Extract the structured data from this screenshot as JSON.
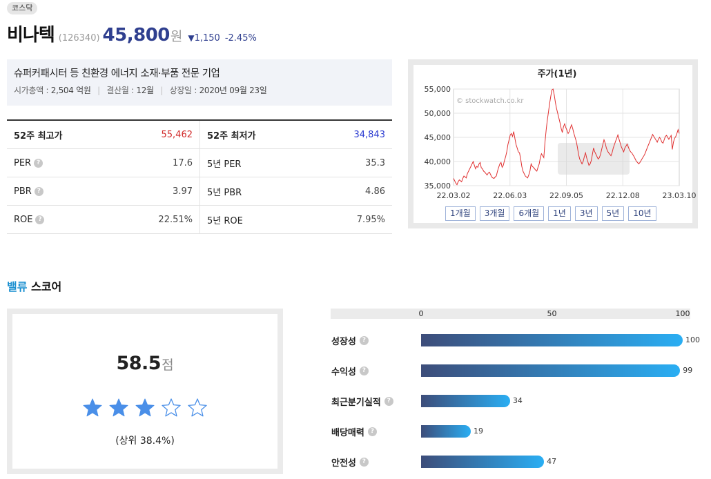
{
  "header": {
    "market": "코스닥",
    "name": "비나텍",
    "code": "(126340)",
    "price": "45,800",
    "price_unit": "원",
    "change_icon": "down-triangle-icon",
    "change_symbol": "▼",
    "change": "1,150",
    "change_pct": "-2.45%",
    "colors": {
      "down": "#2f3f8f",
      "up": "#d12a2a"
    }
  },
  "summary": {
    "description": "슈퍼커패시터 등 친환경 에너지 소재·부품 전문 기업",
    "market_cap_label": "시가총액 : ",
    "market_cap": "2,504 억원",
    "fiscal_label": "결산월 : ",
    "fiscal": "12월",
    "listing_label": "상장일 : ",
    "listing": "2020년 09월 23일"
  },
  "metrics": {
    "rows": [
      {
        "left_key": "52주 최고가",
        "left_val": "55,462",
        "right_key": "52주 최저가",
        "right_val": "34,843"
      },
      {
        "left_key": "PER",
        "left_val": "17.6",
        "right_key": "5년 PER",
        "right_val": "35.3"
      },
      {
        "left_key": "PBR",
        "left_val": "3.97",
        "right_key": "5년 PBR",
        "right_val": "4.86"
      },
      {
        "left_key": "ROE",
        "left_val": "22.51%",
        "right_key": "5년 ROE",
        "right_val": "7.95%"
      }
    ],
    "help_icon": "question-icon",
    "help_glyph": "?"
  },
  "chart_data": {
    "type": "line",
    "title": "주가(1년)",
    "watermark": "© stockwatch.co.kr",
    "x_ticks": [
      "22.03.02",
      "22.06.03",
      "22.09.05",
      "22.12.08",
      "23.03.10"
    ],
    "y_ticks": [
      "35,000",
      "40,000",
      "45,000",
      "50,000",
      "55,000"
    ],
    "ylim": [
      35000,
      55000
    ],
    "grid": true,
    "line_color": "#e03030",
    "series": [
      {
        "values": [
          36500,
          36000,
          35500,
          35200,
          35800,
          36200,
          36000,
          35800,
          36500,
          37000,
          36800,
          36600,
          37500,
          38000,
          38500,
          39000,
          39500,
          40000,
          39200,
          38500,
          39000,
          38800,
          39500,
          39800,
          38700,
          38500,
          38000,
          37800,
          37500,
          37200,
          37600,
          37800,
          37300,
          36800,
          36600,
          36500,
          36800,
          37000,
          38000,
          38800,
          39500,
          39800,
          38800,
          39200,
          40200,
          41000,
          42000,
          43500,
          44500,
          45500,
          45800,
          45200,
          46200,
          44800,
          43500,
          42800,
          42000,
          41800,
          40500,
          39000,
          38000,
          37500,
          37000,
          36800,
          36600,
          37200,
          38000,
          39500,
          39000,
          38800,
          38500,
          38200,
          38000,
          38800,
          39500,
          40800,
          41600,
          41200,
          40800,
          44000,
          46500,
          48500,
          50200,
          52000,
          53500,
          54800,
          55000,
          53800,
          52200,
          51000,
          50000,
          49000,
          48000,
          46800,
          46000,
          47200,
          47800,
          47000,
          46500,
          45800,
          46200,
          47000,
          47600,
          46800,
          45800,
          45000,
          44200,
          43000,
          41500,
          40500,
          40000,
          39500,
          40000,
          41000,
          41800,
          40800,
          40000,
          39200,
          39500,
          40200,
          41500,
          42800,
          42000,
          41500,
          41000,
          40500,
          40800,
          41500,
          42500,
          43500,
          44500,
          43800,
          42800,
          42200,
          41800,
          41500,
          41200,
          41800,
          42800,
          43500,
          44200,
          44800,
          45500,
          44600,
          43800,
          43000,
          42500,
          42000,
          42800,
          43200,
          43600,
          43000,
          42400,
          42000,
          41800,
          41400,
          41000,
          40500,
          40000,
          39800,
          39500,
          39800,
          40200,
          40600,
          41000,
          41400,
          42000,
          42600,
          43200,
          43800,
          44400,
          45000,
          45600,
          45200,
          44800,
          44400,
          44000,
          44600,
          45000,
          44600,
          44000,
          43800,
          44500,
          45200,
          45400,
          45000,
          44600,
          45000,
          45400,
          42500,
          44000,
          44800,
          45200,
          45800,
          46600,
          45800
        ]
      }
    ],
    "buttons": [
      "1개월",
      "3개월",
      "6개월",
      "1년",
      "3년",
      "5년",
      "10년"
    ]
  },
  "value_score": {
    "title_accent": "밸류",
    "title_rest": " 스코어",
    "score": "58.5",
    "score_unit": "점",
    "stars_filled": 3,
    "stars_total": 5,
    "star_color": "#4a8fe8",
    "rank": "(상위 38.4%)"
  },
  "factor_bars": {
    "axis_ticks": [
      "0",
      "50",
      "100"
    ],
    "xlim": [
      0,
      100
    ],
    "items": [
      {
        "label": "성장성",
        "value": 100
      },
      {
        "label": "수익성",
        "value": 99
      },
      {
        "label": "최근분기실적",
        "value": 34
      },
      {
        "label": "배당매력",
        "value": 19
      },
      {
        "label": "안전성",
        "value": 47
      }
    ],
    "colors": {
      "start": "#3d4d7a",
      "end": "#2aaef3"
    }
  }
}
